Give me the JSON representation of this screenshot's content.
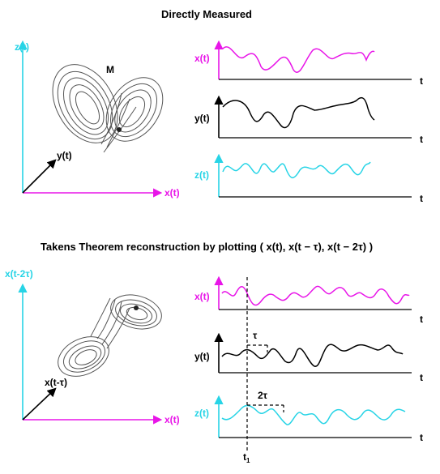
{
  "top_section": {
    "title": "Directly Measured",
    "attractor_label": "M",
    "axis_z": "z(t)",
    "axis_y": "y(t)",
    "axis_x": "x(t)",
    "signals": [
      {
        "label": "x(t)",
        "t_label": "t",
        "color": "#e815e8"
      },
      {
        "label": "y(t)",
        "t_label": "t",
        "color": "#000000"
      },
      {
        "label": "z(t)",
        "t_label": "t",
        "color": "#27d4e6"
      }
    ]
  },
  "bottom_section": {
    "title": "Takens Theorem reconstruction by plotting ( x(t), x(t − τ), x(t − 2τ) )",
    "axis_z": "x(t-2τ)",
    "axis_y": "x(t-τ)",
    "axis_x": "x(t)",
    "signals": [
      {
        "label": "x(t)",
        "t_label": "t",
        "color": "#e815e8"
      },
      {
        "label": "y(t)",
        "t_label": "t",
        "color": "#000000"
      },
      {
        "label": "z(t)",
        "t_label": "t",
        "color": "#27d4e6"
      }
    ],
    "lag_1": "τ",
    "lag_2": "2τ",
    "time_marker": "t",
    "time_marker_sub": "1"
  },
  "colors": {
    "magenta": "#e815e8",
    "cyan": "#27d4e6",
    "attractor": "#555555"
  }
}
